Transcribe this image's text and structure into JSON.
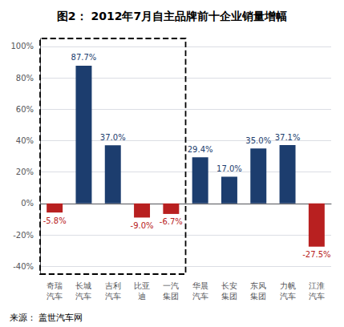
{
  "chart_data": {
    "type": "bar",
    "title": "图2： 2012年7月自主品牌前十企业销量增幅",
    "categories": [
      "奇瑞\n汽车",
      "长城\n汽车",
      "吉利\n汽车",
      "比亚\n迪",
      "一汽\n集团",
      "华晨\n汽车",
      "长安\n集团",
      "东风\n集团",
      "力帆\n汽车",
      "江淮\n汽车"
    ],
    "values": [
      -5.8,
      87.7,
      37.0,
      -9.0,
      -6.7,
      29.4,
      17.0,
      35.0,
      37.1,
      -27.5
    ],
    "value_labels": [
      "-5.8%",
      "87.7%",
      "37.0%",
      "-9.0%",
      "-6.7%",
      "29.4%",
      "17.0%",
      "35.0%",
      "37.1%",
      "-27.5%"
    ],
    "colors": [
      "#b82020",
      "#1c3d6e",
      "#1c3d6e",
      "#b82020",
      "#b82020",
      "#1c3d6e",
      "#1c3d6e",
      "#1c3d6e",
      "#1c3d6e",
      "#b82020"
    ],
    "data_labels": true,
    "ylim": [
      -45,
      105
    ],
    "yticks": [
      {
        "value": -40,
        "label": "-40%"
      },
      {
        "value": -20,
        "label": "-20%"
      },
      {
        "value": 0,
        "label": "0%"
      },
      {
        "value": 20,
        "label": "20%"
      },
      {
        "value": 40,
        "label": "40%"
      },
      {
        "value": 60,
        "label": "60%"
      },
      {
        "value": 80,
        "label": "80%"
      },
      {
        "value": 100,
        "label": "100%"
      }
    ],
    "grid": true,
    "annotations": [
      {
        "text": "来源： 盖世汽车网"
      },
      {
        "box": [
          "奇瑞\n汽车",
          "一汽\n集团"
        ]
      }
    ]
  }
}
